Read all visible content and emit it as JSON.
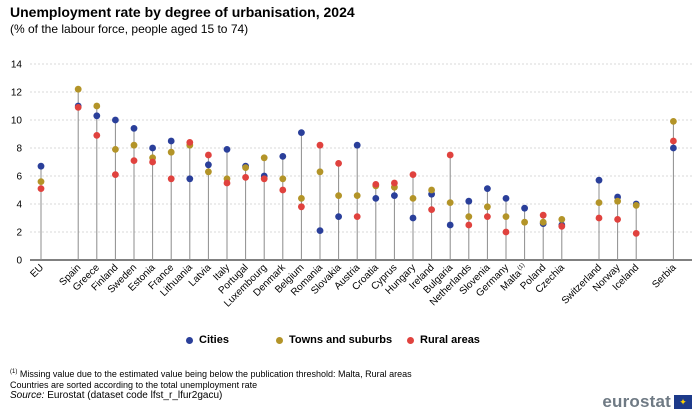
{
  "header": {
    "title": "Unemployment rate by degree of urbanisation, 2024",
    "subtitle": "(% of the labour force, people aged 15 to 74)"
  },
  "chart_data": {
    "type": "scatter",
    "title": "Unemployment rate by degree of urbanisation, 2024",
    "ylabel": "",
    "xlabel": "",
    "ylim": [
      0,
      14
    ],
    "yticks": [
      0,
      2,
      4,
      6,
      8,
      10,
      12,
      14
    ],
    "grid": true,
    "legend_position": "bottom",
    "categories": [
      {
        "label": "EU",
        "group": 0
      },
      {
        "label": "Spain",
        "group": 1
      },
      {
        "label": "Greece",
        "group": 1
      },
      {
        "label": "Finland",
        "group": 1
      },
      {
        "label": "Sweden",
        "group": 1
      },
      {
        "label": "Estonia",
        "group": 1
      },
      {
        "label": "France",
        "group": 1
      },
      {
        "label": "Lithuania",
        "group": 1
      },
      {
        "label": "Latvia",
        "group": 1
      },
      {
        "label": "Italy",
        "group": 1
      },
      {
        "label": "Portugal",
        "group": 1
      },
      {
        "label": "Luxembourg",
        "group": 1
      },
      {
        "label": "Denmark",
        "group": 1
      },
      {
        "label": "Belgium",
        "group": 1
      },
      {
        "label": "Romania",
        "group": 1
      },
      {
        "label": "Slovakia",
        "group": 1
      },
      {
        "label": "Austria",
        "group": 1
      },
      {
        "label": "Croatia",
        "group": 1
      },
      {
        "label": "Cyprus",
        "group": 1
      },
      {
        "label": "Hungary",
        "group": 1
      },
      {
        "label": "Ireland",
        "group": 1
      },
      {
        "label": "Bulgaria",
        "group": 1
      },
      {
        "label": "Netherlands",
        "group": 1
      },
      {
        "label": "Slovenia",
        "group": 1
      },
      {
        "label": "Germany",
        "group": 1
      },
      {
        "label": "Malta",
        "group": 1,
        "note": "(1)"
      },
      {
        "label": "Poland",
        "group": 1
      },
      {
        "label": "Czechia",
        "group": 1
      },
      {
        "label": "Switzerland",
        "group": 2
      },
      {
        "label": "Norway",
        "group": 2
      },
      {
        "label": "Iceland",
        "group": 2
      },
      {
        "label": "Serbia",
        "group": 3
      }
    ],
    "series": [
      {
        "name": "Cities",
        "color": "#2a3f9a",
        "values": [
          6.7,
          11.0,
          10.3,
          10.0,
          9.4,
          8.0,
          8.5,
          5.8,
          6.8,
          7.9,
          6.7,
          6.0,
          7.4,
          9.1,
          2.1,
          3.1,
          8.2,
          4.4,
          4.6,
          3.0,
          4.7,
          2.5,
          4.2,
          5.1,
          4.4,
          3.7,
          2.6,
          2.5,
          5.7,
          4.5,
          4.0,
          8.0
        ]
      },
      {
        "name": "Towns and suburbs",
        "color": "#b39428",
        "values": [
          5.6,
          12.2,
          11.0,
          7.9,
          8.2,
          7.3,
          7.7,
          8.2,
          6.3,
          5.8,
          6.6,
          7.3,
          5.8,
          4.4,
          6.3,
          4.6,
          4.6,
          5.3,
          5.2,
          4.4,
          5.0,
          4.1,
          3.1,
          3.8,
          3.1,
          2.7,
          2.7,
          2.9,
          4.1,
          4.2,
          3.9,
          9.9
        ]
      },
      {
        "name": "Rural areas",
        "color": "#e0423e",
        "values": [
          5.1,
          10.9,
          8.9,
          6.1,
          7.1,
          7.0,
          5.8,
          8.4,
          7.5,
          5.5,
          5.9,
          5.8,
          5.0,
          3.8,
          8.2,
          6.9,
          3.1,
          5.4,
          5.5,
          6.1,
          3.6,
          7.5,
          2.5,
          3.1,
          2.0,
          null,
          3.2,
          2.4,
          3.0,
          2.9,
          1.9,
          8.5
        ]
      }
    ]
  },
  "legend": {
    "items": [
      {
        "label": "Cities",
        "color": "#2a3f9a"
      },
      {
        "label": "Towns and suburbs",
        "color": "#b39428"
      },
      {
        "label": "Rural areas",
        "color": "#e0423e"
      }
    ]
  },
  "footer": {
    "note_marker": "(1)",
    "note1": "Missing value due to the estimated value being below the publication threshold: Malta, Rural areas",
    "note2": "Countries are sorted according to the total unemployment rate",
    "source_label": "Source:",
    "source_text": "Eurostat (dataset code lfst_r_lfur2gacu)",
    "logo": "eurostat",
    "flag_icon": "eu-flag-icon"
  }
}
